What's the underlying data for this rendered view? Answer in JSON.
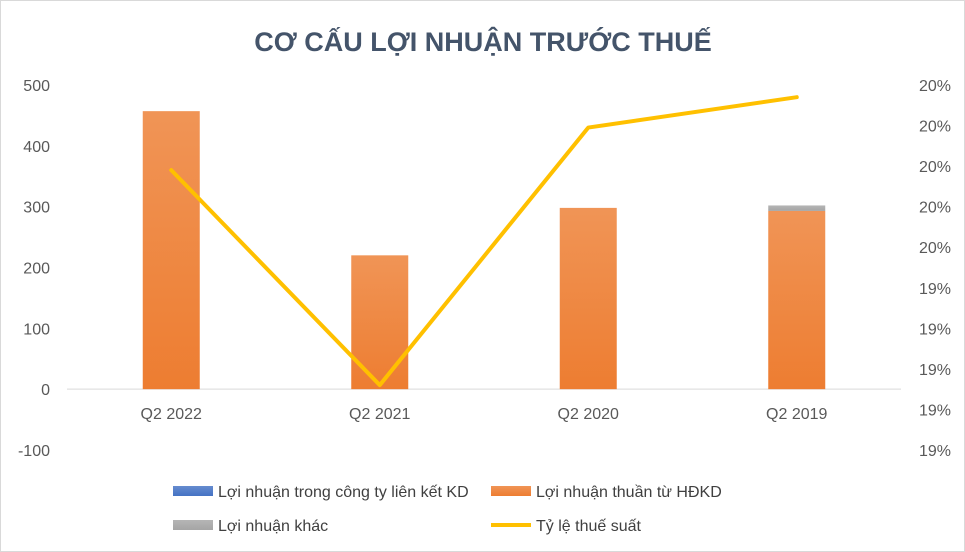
{
  "chart_data": {
    "type": "bar",
    "title": "CƠ CẤU LỢI NHUẬN TRƯỚC THUẾ",
    "categories": [
      "Q2 2022",
      "Q2 2021",
      "Q2 2020",
      "Q2 2019"
    ],
    "y_ticks": [
      "500",
      "400",
      "300",
      "200",
      "100",
      "0",
      "-100"
    ],
    "ylim": [
      -100,
      500
    ],
    "y2_ticks": [
      "20%",
      "20%",
      "20%",
      "20%",
      "20%",
      "19%",
      "19%",
      "19%",
      "19%",
      "19%"
    ],
    "y2lim": [
      0.188,
      0.206
    ],
    "series": [
      {
        "name": "Lợi nhuận trong công ty liên kết KD",
        "type": "bar",
        "axis": "left",
        "color": "#4472c4",
        "values": [
          0,
          0,
          0,
          0
        ]
      },
      {
        "name": "Lợi nhuận thuần từ HĐKD",
        "type": "bar",
        "axis": "left",
        "color": "#ed7d31",
        "values": [
          457,
          220,
          298,
          293
        ]
      },
      {
        "name": "Lợi nhuận khác",
        "type": "bar",
        "axis": "left",
        "color": "#a5a5a5",
        "values": [
          0,
          0,
          0,
          9
        ]
      },
      {
        "name": "Tỷ lệ thuế suất",
        "type": "line",
        "axis": "right",
        "color": "#ffc000",
        "values": [
          0.2018,
          0.1912,
          0.2039,
          0.2054
        ]
      }
    ],
    "legend_position": "bottom",
    "grid": false
  }
}
